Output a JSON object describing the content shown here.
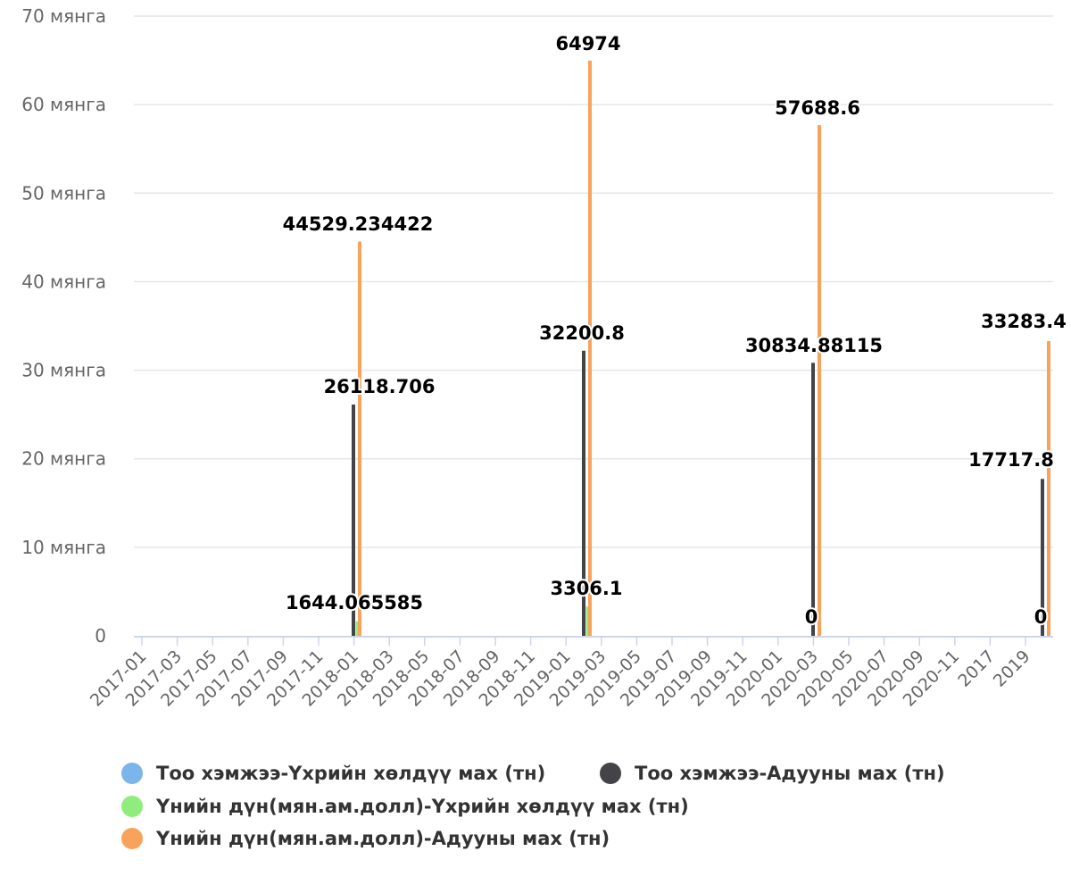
{
  "chart_data": {
    "type": "bar",
    "y_axis": {
      "min": 0,
      "max": 70000,
      "tick_labels": [
        "0",
        "10 мянга",
        "20 мянга",
        "30 мянга",
        "40 мянга",
        "50 мянга",
        "60 мянга",
        "70 мянга"
      ],
      "tick_values": [
        0,
        10000,
        20000,
        30000,
        40000,
        50000,
        60000,
        70000
      ],
      "grid": true
    },
    "x_axis": {
      "tick_labels": [
        "2017-01",
        "2017-03",
        "2017-05",
        "2017-07",
        "2017-09",
        "2017-11",
        "2018-01",
        "2018-03",
        "2018-05",
        "2018-07",
        "2018-09",
        "2018-11",
        "2019-01",
        "2019-03",
        "2019-05",
        "2019-07",
        "2019-09",
        "2019-11",
        "2020-01",
        "2020-03",
        "2020-05",
        "2020-07",
        "2020-09",
        "2020-11",
        "2017",
        "2019"
      ]
    },
    "categories": [
      "2018-01",
      "2019-03",
      "2020-03",
      "2019"
    ],
    "series": [
      {
        "name": "Тоо хэмжээ-Үхрийн хөлдүү мах (тн)",
        "color": "#7cb5ec",
        "values": [
          null,
          null,
          null,
          null
        ],
        "labels": [
          "",
          "",
          "",
          ""
        ]
      },
      {
        "name": "Тоо хэмжээ-Адууны мах (тн)",
        "color": "#434348",
        "values": [
          26118.706,
          32200.8,
          30834.88115,
          17717.8
        ],
        "labels": [
          "26118.706",
          "32200.8",
          "30834.88115",
          "17717.8"
        ]
      },
      {
        "name": "Үнийн дүн(мян.ам.долл)-Үхрийн хөлдүү мах (тн)",
        "color": "#90ed7d",
        "values": [
          1644.065585,
          3306.1,
          0,
          0
        ],
        "labels": [
          "1644.065585",
          "3306.1",
          "0",
          "0"
        ]
      },
      {
        "name": "Үнийн дүн(мян.ам.долл)-Адууны мах (тн)",
        "color": "#f7a35c",
        "values": [
          44529.234422,
          64974,
          57688.6,
          33283.4
        ],
        "labels": [
          "44529.234422",
          "64974",
          "57688.6",
          "33283.4"
        ]
      }
    ],
    "legend": {
      "position": "bottom",
      "items": [
        "Тоо хэмжээ-Үхрийн хөлдүү мах (тн)",
        "Тоо хэмжээ-Адууны мах (тн)",
        "Үнийн дүн(мян.ам.долл)-Үхрийн хөлдүү мах (тн)",
        "Үнийн дүн(мян.ам.долл)-Адууны мах (тн)"
      ]
    }
  }
}
